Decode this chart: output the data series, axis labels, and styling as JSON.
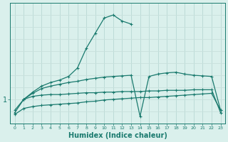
{
  "xlabel": "Humidex (Indice chaleur)",
  "bg_color": "#daf0ec",
  "line_color": "#1a7a6e",
  "grid_color_v": "#b8d8d4",
  "grid_color_h": "#c8e0dc",
  "ylim": [
    0.6,
    2.6
  ],
  "xlim": [
    -0.5,
    23.5
  ],
  "lineA_x": [
    0,
    1,
    2,
    3,
    4,
    5,
    6,
    7,
    8,
    9,
    10,
    11,
    12,
    13,
    14,
    15,
    16,
    17,
    18,
    19,
    20,
    21,
    22,
    23
  ],
  "lineA_y": [
    0.78,
    1.0,
    1.05,
    1.07,
    1.08,
    1.08,
    1.09,
    1.1,
    1.11,
    1.11,
    1.12,
    1.12,
    1.13,
    1.13,
    1.13,
    1.14,
    1.14,
    1.15,
    1.15,
    1.15,
    1.16,
    1.16,
    1.16,
    0.78
  ],
  "lineB_x": [
    0,
    1,
    2,
    3,
    4,
    5,
    6,
    7,
    8,
    9,
    10,
    11,
    12,
    13,
    14,
    15,
    16,
    17,
    18,
    19,
    20,
    21,
    22,
    23
  ],
  "lineB_y": [
    0.75,
    0.85,
    0.88,
    0.9,
    0.91,
    0.92,
    0.93,
    0.94,
    0.96,
    0.97,
    0.99,
    1.0,
    1.01,
    1.02,
    1.03,
    1.03,
    1.04,
    1.05,
    1.06,
    1.07,
    1.08,
    1.09,
    1.1,
    0.82
  ],
  "lineC_x": [
    1,
    2,
    3,
    4,
    5,
    6,
    7,
    8,
    9,
    10,
    11,
    12,
    13
  ],
  "lineC_y": [
    1.0,
    1.12,
    1.22,
    1.28,
    1.32,
    1.38,
    1.52,
    1.85,
    2.1,
    2.35,
    2.4,
    2.3,
    2.25
  ],
  "lineD_x": [
    0,
    1,
    2,
    3,
    4,
    5,
    6,
    7,
    8,
    9,
    10,
    11,
    12,
    13,
    14,
    15,
    16,
    17,
    18,
    19,
    20,
    21,
    22,
    23
  ],
  "lineD_y": [
    0.82,
    1.0,
    1.1,
    1.18,
    1.22,
    1.25,
    1.28,
    1.3,
    1.33,
    1.35,
    1.37,
    1.38,
    1.39,
    1.4,
    0.72,
    1.38,
    1.42,
    1.44,
    1.45,
    1.42,
    1.4,
    1.39,
    1.38,
    0.82
  ]
}
